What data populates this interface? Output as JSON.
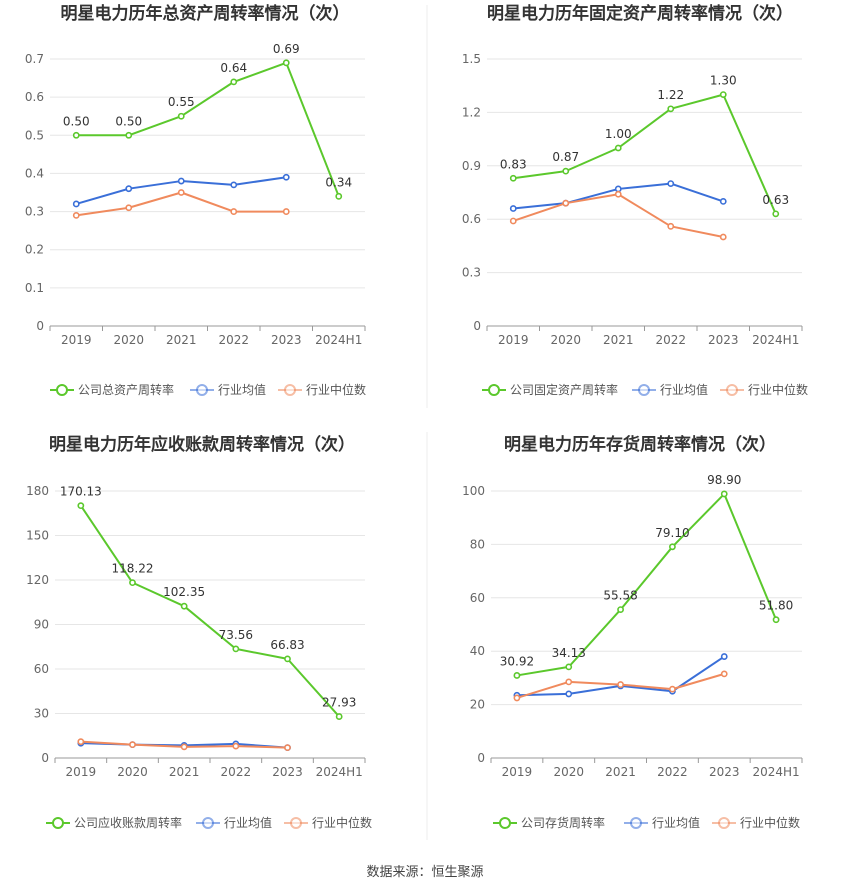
{
  "source_label": "数据来源：恒生聚源",
  "colors": {
    "company": "#5bc82c",
    "industry_avg": "#3a6fd8",
    "industry_median": "#f08a5d"
  },
  "chart_data": [
    {
      "type": "line",
      "title": "明星电力历年总资产周转率情况（次）",
      "categories": [
        "2019",
        "2020",
        "2021",
        "2022",
        "2023",
        "2024H1"
      ],
      "yticks": [
        "0",
        "0.1",
        "0.2",
        "0.3",
        "0.4",
        "0.5",
        "0.6",
        "0.7"
      ],
      "ylim": [
        0,
        0.7
      ],
      "series": [
        {
          "name": "公司总资产周转率",
          "role": "company",
          "values": [
            0.5,
            0.5,
            0.55,
            0.64,
            0.69,
            0.34
          ],
          "labels": [
            "0.50",
            "0.50",
            "0.55",
            "0.64",
            "0.69",
            "0.34"
          ]
        },
        {
          "name": "行业均值",
          "role": "industry_avg",
          "values": [
            0.32,
            0.36,
            0.38,
            0.37,
            0.39,
            null
          ]
        },
        {
          "name": "行业中位数",
          "role": "industry_median",
          "values": [
            0.29,
            0.31,
            0.35,
            0.3,
            0.3,
            null
          ]
        }
      ]
    },
    {
      "type": "line",
      "title": "明星电力历年固定资产周转率情况（次）",
      "categories": [
        "2019",
        "2020",
        "2021",
        "2022",
        "2023",
        "2024H1"
      ],
      "yticks": [
        "0",
        "0.3",
        "0.6",
        "0.9",
        "1.2",
        "1.5"
      ],
      "ylim": [
        0,
        1.5
      ],
      "series": [
        {
          "name": "公司固定资产周转率",
          "role": "company",
          "values": [
            0.83,
            0.87,
            1.0,
            1.22,
            1.3,
            0.63
          ],
          "labels": [
            "0.83",
            "0.87",
            "1.00",
            "1.22",
            "1.30",
            "0.63"
          ]
        },
        {
          "name": "行业均值",
          "role": "industry_avg",
          "values": [
            0.66,
            0.69,
            0.77,
            0.8,
            0.7,
            null
          ]
        },
        {
          "name": "行业中位数",
          "role": "industry_median",
          "values": [
            0.59,
            0.69,
            0.74,
            0.56,
            0.5,
            null
          ]
        }
      ]
    },
    {
      "type": "line",
      "title": "明星电力历年应收账款周转率情况（次）",
      "categories": [
        "2019",
        "2020",
        "2021",
        "2022",
        "2023",
        "2024H1"
      ],
      "yticks": [
        "0",
        "30",
        "60",
        "90",
        "120",
        "150",
        "180"
      ],
      "ylim": [
        0,
        180
      ],
      "series": [
        {
          "name": "公司应收账款周转率",
          "role": "company",
          "values": [
            170.13,
            118.22,
            102.35,
            73.56,
            66.83,
            27.93
          ],
          "labels": [
            "170.13",
            "118.22",
            "102.35",
            "73.56",
            "66.83",
            "27.93"
          ]
        },
        {
          "name": "行业均值",
          "role": "industry_avg",
          "values": [
            10,
            9,
            8.5,
            9.5,
            7,
            null
          ]
        },
        {
          "name": "行业中位数",
          "role": "industry_median",
          "values": [
            11,
            9,
            7.5,
            8,
            7,
            null
          ]
        }
      ]
    },
    {
      "type": "line",
      "title": "明星电力历年存货周转率情况（次）",
      "categories": [
        "2019",
        "2020",
        "2021",
        "2022",
        "2023",
        "2024H1"
      ],
      "yticks": [
        "0",
        "20",
        "40",
        "60",
        "80",
        "100"
      ],
      "ylim": [
        0,
        100
      ],
      "series": [
        {
          "name": "公司存货周转率",
          "role": "company",
          "values": [
            30.92,
            34.13,
            55.58,
            79.1,
            98.9,
            51.8
          ],
          "labels": [
            "30.92",
            "34.13",
            "55.58",
            "79.10",
            "98.90",
            "51.80"
          ]
        },
        {
          "name": "行业均值",
          "role": "industry_avg",
          "values": [
            23.5,
            24,
            27,
            25,
            38,
            null
          ]
        },
        {
          "name": "行业中位数",
          "role": "industry_median",
          "values": [
            22.5,
            28.5,
            27.5,
            25.8,
            31.5,
            null
          ]
        }
      ]
    }
  ]
}
